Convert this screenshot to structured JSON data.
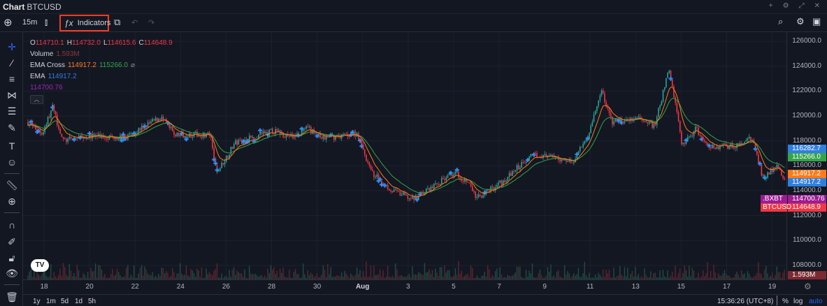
{
  "window": {
    "title": "Chart",
    "symbol": "BTCUSD",
    "controls": [
      "+",
      "⚙",
      "⤢",
      "✕"
    ]
  },
  "toolbar": {
    "interval": "15m",
    "indicators_label": "Indicators"
  },
  "legend": {
    "ohlc": {
      "o_label": "O",
      "o": "114710.1",
      "h_label": "H",
      "h": "114732.0",
      "l_label": "L",
      "l": "114615.6",
      "c_label": "C",
      "c": "114648.9"
    },
    "volume": {
      "label": "Volume",
      "value": "1.593M"
    },
    "ema_cross": {
      "label": "EMA Cross",
      "fast": "114917.2",
      "slow": "115266.0"
    },
    "ema": {
      "label": "EMA",
      "value": "114917.2"
    },
    "index": {
      "value": "114700.76"
    }
  },
  "price_axis": {
    "ticks": [
      "126000.0",
      "124000.0",
      "122000.0",
      "120000.0",
      "118000.0",
      "116000.0",
      "114000.0",
      "112000.0",
      "110000.0",
      "108000.0"
    ],
    "tags": [
      {
        "value": "116282.7",
        "color": "#2f7fe0"
      },
      {
        "value": "115266.0",
        "color": "#35a34a"
      },
      {
        "value": "114917.2",
        "color": "#ff7a1a"
      },
      {
        "value": "114917.2",
        "color": "#2f7fe0"
      },
      {
        "value": "114700.76",
        "color": "#9c1c94",
        "name": ".BXBT"
      },
      {
        "value": "114648.9",
        "color": "#f23645",
        "name": "BTCUSD"
      }
    ],
    "volume_tag": "1.593M"
  },
  "time_axis": {
    "labels": [
      "18",
      "20",
      "22",
      "24",
      "26",
      "28",
      "30",
      "Aug",
      "3",
      "5",
      "7",
      "9",
      "11",
      "13",
      "15",
      "17",
      "19"
    ]
  },
  "bottom": {
    "ranges": [
      "1y",
      "1m",
      "5d",
      "1d",
      "5h"
    ],
    "clock": "15:36:26 (UTC+8)",
    "percent": "%",
    "log": "log",
    "auto": "auto"
  },
  "colors": {
    "up": "#26a69a",
    "down": "#f23645",
    "accent": "#2962ff",
    "ema_fast": "#ff7a1a",
    "ema_slow": "#35a34a"
  },
  "chart_data": {
    "type": "candlestick",
    "ylim": [
      107000,
      127000
    ],
    "close_path": [
      [
        "07-17 07",
        119500
      ],
      [
        "07-17 22",
        118600
      ],
      [
        "07-18 09",
        120700
      ],
      [
        "07-18 20",
        118000
      ],
      [
        "07-20 01",
        118400
      ],
      [
        "07-21 14",
        118300
      ],
      [
        "07-23 03",
        119900
      ],
      [
        "07-23 18",
        118500
      ],
      [
        "07-25 07",
        118500
      ],
      [
        "07-25 14",
        115400
      ],
      [
        "07-26 09",
        117800
      ],
      [
        "07-28 01",
        118800
      ],
      [
        "07-28 23",
        118300
      ],
      [
        "07-29 14",
        119000
      ],
      [
        "07-30 05",
        118200
      ],
      [
        "07-31 18",
        118600
      ],
      [
        "08-01 09",
        115500
      ],
      [
        "08-02 07",
        114000
      ],
      [
        "08-03 05",
        113300
      ],
      [
        "08-05 01",
        115500
      ],
      [
        "08-05 16",
        114600
      ],
      [
        "08-06 00",
        113400
      ],
      [
        "08-07 05",
        114800
      ],
      [
        "08-08 11",
        117000
      ],
      [
        "08-09 09",
        116600
      ],
      [
        "08-10 07",
        116400
      ],
      [
        "08-10 22",
        118500
      ],
      [
        "08-11 12",
        122000
      ],
      [
        "08-11 23",
        119500
      ],
      [
        "08-13 09",
        119800
      ],
      [
        "08-13 20",
        119100
      ],
      [
        "08-14 11",
        123800
      ],
      [
        "08-14 18",
        121000
      ],
      [
        "08-15 01",
        117600
      ],
      [
        "08-15 16",
        119000
      ],
      [
        "08-16 03",
        117500
      ],
      [
        "08-17 09",
        117600
      ],
      [
        "08-18 03",
        118200
      ],
      [
        "08-18 14",
        115000
      ],
      [
        "08-19 05",
        116000
      ],
      [
        "08-19 14",
        114650
      ]
    ]
  }
}
